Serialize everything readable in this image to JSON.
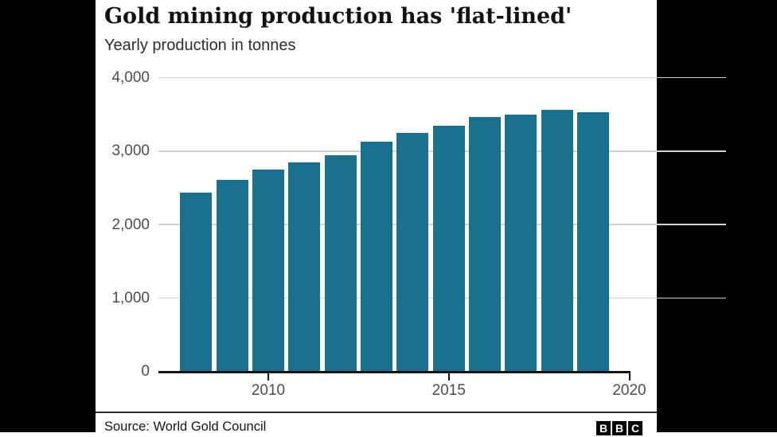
{
  "header": {
    "title": "Gold mining production has 'flat-lined'",
    "subtitle": "Yearly production in tonnes"
  },
  "footer": {
    "source": "Source: World Gold Council",
    "logo_letters": [
      "B",
      "B",
      "C"
    ]
  },
  "colors": {
    "bar": "#19708E",
    "axis": "#141414",
    "grid": "#d2d2d2",
    "tick_label": "#4d4d4d",
    "letterbox": "#000000"
  },
  "chart_data": {
    "type": "bar",
    "title": "Gold mining production has 'flat-lined'",
    "subtitle": "Yearly production in tonnes",
    "ylabel": "Yearly production in tonnes",
    "xlabel": "",
    "x": [
      2008,
      2009,
      2010,
      2011,
      2012,
      2013,
      2014,
      2015,
      2016,
      2017,
      2018,
      2019
    ],
    "values": [
      2430,
      2610,
      2745,
      2845,
      2940,
      3130,
      3245,
      3340,
      3460,
      3500,
      3560,
      3530
    ],
    "ylim": [
      0,
      4000
    ],
    "xlim": [
      2007,
      2020.5
    ],
    "yticks": [
      {
        "value": 0,
        "label": "0"
      },
      {
        "value": 1000,
        "label": "1,000"
      },
      {
        "value": 2000,
        "label": "2,000"
      },
      {
        "value": 3000,
        "label": "3,000"
      },
      {
        "value": 4000,
        "label": "4,000"
      }
    ],
    "xticks": [
      {
        "value": 2010,
        "label": "2010"
      },
      {
        "value": 2015,
        "label": "2015"
      },
      {
        "value": 2020,
        "label": "2020"
      }
    ],
    "grid": "horizontal",
    "legend": "none",
    "bar_color": "#19708E"
  }
}
